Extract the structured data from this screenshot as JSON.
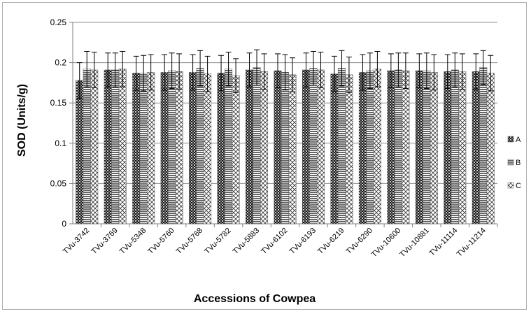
{
  "chart_data": {
    "type": "bar",
    "title": "",
    "xlabel": "Accessions of Cowpea",
    "ylabel": "SOD (Units/g)",
    "ylim": [
      0,
      0.25
    ],
    "yticks": [
      "0",
      "0.05",
      "0.1",
      "0.15",
      "0.2",
      "0.25"
    ],
    "ytick_values": [
      0,
      0.05,
      0.1,
      0.15,
      0.2,
      0.25
    ],
    "grid": "horizontal",
    "legend_position": "right",
    "categories": [
      "TVu-3742",
      "TVu-3769",
      "TVu-5348",
      "TVu-5760",
      "TVu-5768",
      "TVu-5782",
      "TVu-5883",
      "TVu-6102",
      "TVu-6193",
      "TVu-6219",
      "TVu-6290",
      "TVu-10600",
      "TVu-10881",
      "TVu-11114",
      "TVu-11214"
    ],
    "series": [
      {
        "name": "A",
        "values": [
          0.178,
          0.191,
          0.187,
          0.188,
          0.188,
          0.187,
          0.191,
          0.19,
          0.191,
          0.186,
          0.188,
          0.19,
          0.19,
          0.189,
          0.189
        ],
        "errors": [
          0.022,
          0.021,
          0.021,
          0.022,
          0.022,
          0.022,
          0.021,
          0.021,
          0.021,
          0.022,
          0.022,
          0.021,
          0.021,
          0.021,
          0.022
        ]
      },
      {
        "name": "B",
        "values": [
          0.192,
          0.191,
          0.187,
          0.19,
          0.193,
          0.192,
          0.194,
          0.188,
          0.193,
          0.193,
          0.19,
          0.191,
          0.19,
          0.191,
          0.194
        ],
        "errors": [
          0.022,
          0.021,
          0.022,
          0.022,
          0.022,
          0.021,
          0.022,
          0.022,
          0.021,
          0.022,
          0.022,
          0.021,
          0.022,
          0.021,
          0.021
        ]
      },
      {
        "name": "C",
        "values": [
          0.191,
          0.192,
          0.188,
          0.189,
          0.186,
          0.184,
          0.189,
          0.185,
          0.191,
          0.185,
          0.192,
          0.19,
          0.188,
          0.189,
          0.187
        ],
        "errors": [
          0.022,
          0.022,
          0.022,
          0.022,
          0.022,
          0.021,
          0.022,
          0.021,
          0.022,
          0.022,
          0.022,
          0.022,
          0.022,
          0.022,
          0.022
        ]
      }
    ]
  }
}
